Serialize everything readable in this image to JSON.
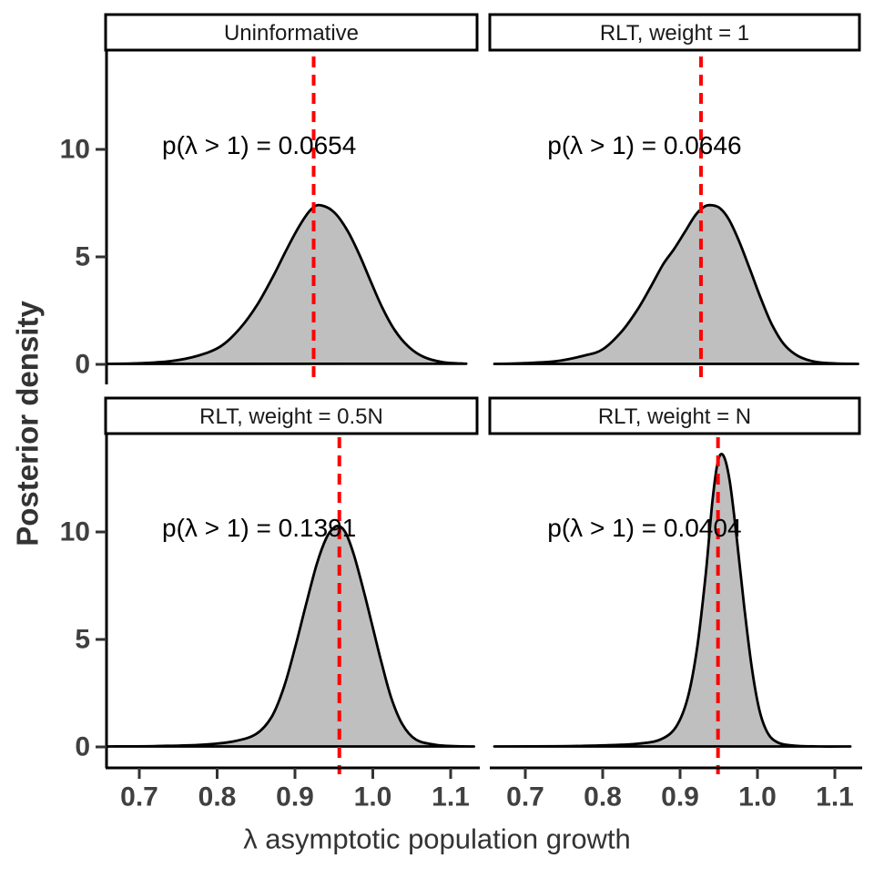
{
  "figure": {
    "background": "#FFFFFF",
    "y_axis": {
      "title": "Posterior density",
      "ticks": [
        "0",
        "5",
        "10"
      ],
      "tick_values": [
        0,
        5,
        10
      ]
    },
    "x_axis": {
      "title": "λ asymptotic population growth",
      "ticks": [
        "0.7",
        "0.8",
        "0.9",
        "1.0",
        "1.1"
      ],
      "tick_values": [
        0.7,
        0.8,
        0.9,
        1.0,
        1.1
      ]
    },
    "colors": {
      "density_fill": "#BFBFBF",
      "density_stroke": "#000000",
      "reference_line": "#FF0000",
      "axis_line": "#000000",
      "tick_mark": "#333333",
      "tick_label": "#404040",
      "axis_title": "#333333",
      "strip_background": "#FFFFFF",
      "strip_border": "#000000",
      "strip_text": "#1A1A1A",
      "annotation_text": "#000000"
    }
  },
  "chart_data": {
    "type": "area",
    "description": "2x2 faceted posterior density plot of asymptotic population growth rate under four priors",
    "xlabel": "λ asymptotic population growth",
    "ylabel": "Posterior density",
    "xlim": [
      0.655,
      1.135
    ],
    "ylim": [
      0,
      14.6
    ],
    "x_ticks": [
      0.7,
      0.8,
      0.9,
      1.0,
      1.1
    ],
    "y_ticks": [
      0,
      5,
      10
    ],
    "grid": false,
    "legend": false,
    "facets": [
      {
        "title": "Uninformative",
        "annotation": "p(λ > 1) = 0.0654",
        "p_lambda_gt_1": 0.0654,
        "ref_x": 0.924,
        "x": [
          0.66,
          0.7,
          0.74,
          0.775,
          0.805,
          0.83,
          0.852,
          0.872,
          0.89,
          0.905,
          0.918,
          0.928,
          0.938,
          0.948,
          0.958,
          0.97,
          0.984,
          0.998,
          1.012,
          1.028,
          1.045,
          1.065,
          1.09,
          1.12
        ],
        "density": [
          0.02,
          0.05,
          0.15,
          0.4,
          0.85,
          1.7,
          2.8,
          4.1,
          5.4,
          6.4,
          7.1,
          7.4,
          7.35,
          7.15,
          6.75,
          6.05,
          5.0,
          3.8,
          2.65,
          1.6,
          0.85,
          0.35,
          0.1,
          0.03
        ]
      },
      {
        "title": "RLT, weight = 1",
        "annotation": "p(λ > 1) = 0.0646",
        "p_lambda_gt_1": 0.0646,
        "ref_x": 0.927,
        "x": [
          0.66,
          0.7,
          0.74,
          0.775,
          0.8,
          0.825,
          0.845,
          0.862,
          0.878,
          0.892,
          0.906,
          0.92,
          0.932,
          0.942,
          0.952,
          0.963,
          0.976,
          0.99,
          1.004,
          1.018,
          1.034,
          1.052,
          1.075,
          1.105,
          1.13
        ],
        "density": [
          0.02,
          0.06,
          0.15,
          0.4,
          0.7,
          1.55,
          2.55,
          3.6,
          4.65,
          5.35,
          6.15,
          6.95,
          7.35,
          7.4,
          7.25,
          6.75,
          5.75,
          4.45,
          3.1,
          1.9,
          0.95,
          0.4,
          0.12,
          0.04,
          0.02
        ]
      },
      {
        "title": "RLT, weight = 0.5N",
        "annotation": "p(λ > 1) = 0.1391",
        "p_lambda_gt_1": 0.1391,
        "ref_x": 0.957,
        "x": [
          0.66,
          0.72,
          0.78,
          0.82,
          0.85,
          0.87,
          0.886,
          0.9,
          0.914,
          0.928,
          0.94,
          0.95,
          0.958,
          0.966,
          0.976,
          0.988,
          1.0,
          1.012,
          1.024,
          1.038,
          1.055,
          1.08,
          1.11,
          1.13
        ],
        "density": [
          0.02,
          0.04,
          0.1,
          0.25,
          0.6,
          1.4,
          2.8,
          4.6,
          6.6,
          8.5,
          9.7,
          10.2,
          10.25,
          9.9,
          8.9,
          7.3,
          5.55,
          3.8,
          2.25,
          1.05,
          0.35,
          0.1,
          0.03,
          0.02
        ]
      },
      {
        "title": "RLT, weight = N",
        "annotation": "p(λ > 1) = 0.0404",
        "p_lambda_gt_1": 0.0404,
        "ref_x": 0.949,
        "x": [
          0.66,
          0.74,
          0.8,
          0.845,
          0.875,
          0.895,
          0.91,
          0.922,
          0.933,
          0.942,
          0.949,
          0.956,
          0.964,
          0.973,
          0.983,
          0.993,
          1.003,
          1.014,
          1.028,
          1.048,
          1.08,
          1.12
        ],
        "density": [
          0.02,
          0.03,
          0.07,
          0.15,
          0.35,
          0.95,
          2.3,
          4.6,
          8.0,
          11.5,
          13.3,
          13.55,
          12.4,
          9.8,
          6.5,
          3.6,
          1.65,
          0.6,
          0.18,
          0.06,
          0.02,
          0.02
        ]
      }
    ]
  }
}
